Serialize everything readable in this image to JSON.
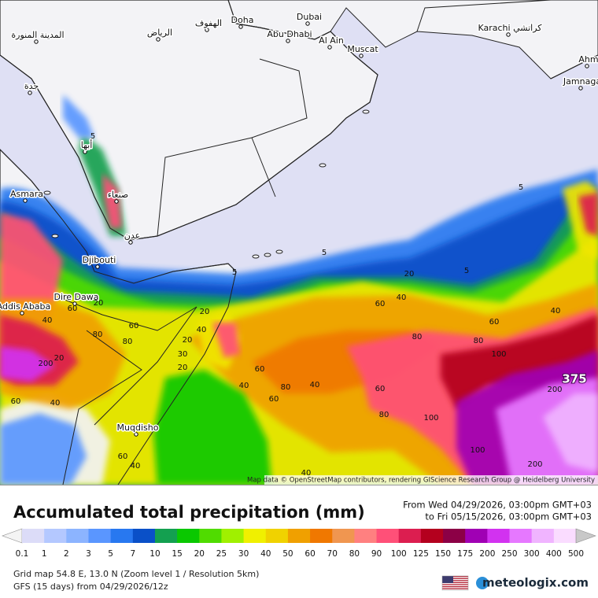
{
  "map": {
    "place_labels": [
      "المدينة المنورة",
      "الرياض",
      "الهفوف",
      "Doha",
      "Dubai",
      "Abu Dhabi",
      "Al Ain",
      "Muscat",
      "Karachi كراتشي",
      "Ahm",
      "Jamnaga",
      "جدة",
      "أبها",
      "صنعاء",
      "عدن",
      "Asmara",
      "Djibouti",
      "Dire Dawa",
      "Addis Ababa",
      "Muqdisho"
    ],
    "contour_labels": [
      5,
      5,
      5,
      5,
      5,
      20,
      40,
      60,
      20,
      40,
      60,
      80,
      20,
      40,
      60,
      80,
      20,
      30,
      20,
      40,
      80,
      60,
      60,
      40,
      60,
      80,
      80,
      60,
      40,
      100,
      200,
      80,
      100,
      100,
      60,
      40,
      40,
      200,
      60,
      40,
      200,
      20
    ],
    "max_label": "375",
    "attribution": "Map data © OpenStreetMap contributors, rendering GIScience Research Group @ Heidelberg University"
  },
  "legend": {
    "title": "Accumulated total precipitation (mm)",
    "from": "From Wed 04/29/2026, 03:00pm GMT+03",
    "to": "to Fri 05/15/2026, 03:00pm GMT+03",
    "ticks": [
      0.1,
      1,
      2,
      3,
      5,
      7,
      10,
      15,
      20,
      25,
      30,
      40,
      50,
      60,
      70,
      80,
      90,
      100,
      125,
      150,
      175,
      200,
      250,
      300,
      400,
      500
    ],
    "colors": [
      "#f4f4f4",
      "#dcdcf8",
      "#b4c8ff",
      "#8cb4ff",
      "#5a96ff",
      "#2878f0",
      "#0a50c8",
      "#14a050",
      "#0ac800",
      "#50dc00",
      "#a0f000",
      "#f0f000",
      "#f0d200",
      "#f0a000",
      "#f07800",
      "#f09650",
      "#ff8080",
      "#ff5078",
      "#dc1e50",
      "#b4001e",
      "#8c0046",
      "#a000b4",
      "#d232f0",
      "#e678ff",
      "#f0b4ff",
      "#fadcff",
      "#c8c8c8"
    ]
  },
  "footer": {
    "grid": "Grid map 54.8 E, 13.0 N (Zoom level 1 / Resolution 5km)",
    "model": "GFS (15 days) from  04/29/2026/12z",
    "brand": "meteologix.com"
  }
}
